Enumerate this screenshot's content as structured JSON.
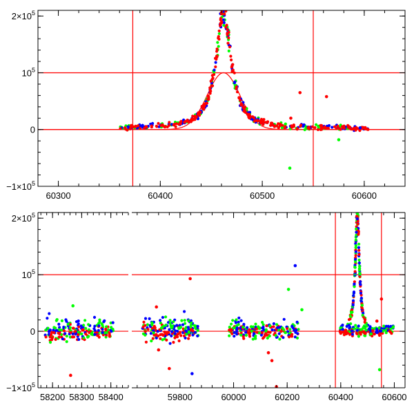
{
  "colors": {
    "red": "#ff0000",
    "green": "#00ff00",
    "blue": "#0000ff",
    "axis": "#000000"
  },
  "chart_data": [
    {
      "type": "scatter",
      "panel": "top",
      "xlim": [
        60280,
        60640
      ],
      "ylim": [
        -100000,
        210000
      ],
      "xticks": [
        60300,
        60400,
        60500,
        60600
      ],
      "x_tick_labels": [
        "60300",
        "60400",
        "60500",
        "60600"
      ],
      "yticks": [
        -100000,
        0,
        100000,
        200000
      ],
      "y_tick_labels": [
        {
          "base": "−1×10",
          "exp": "5"
        },
        {
          "base": "0",
          "exp": ""
        },
        {
          "base": "10",
          "exp": "5"
        },
        {
          "base": "2×10",
          "exp": "5"
        }
      ],
      "reference_lines": {
        "h": [
          0,
          100000
        ],
        "v": [
          60373,
          60550
        ]
      },
      "model_curve": {
        "center": 60462,
        "amplitude": 100000,
        "width": 16,
        "shape": "gaussian"
      },
      "lightcurve": {
        "x_start": 60360,
        "x_end": 60604,
        "peak_x": 60462,
        "peak_amplitude": 205000,
        "half_width": 9
      },
      "series": [
        {
          "color": "green",
          "points": 150
        },
        {
          "color": "blue",
          "points": 150
        },
        {
          "color": "red",
          "points": 260
        }
      ],
      "outliers": [
        {
          "x": 60537,
          "y": 65000,
          "color": "red"
        },
        {
          "x": 60563,
          "y": 58000,
          "color": "red"
        },
        {
          "x": 60527,
          "y": -68000,
          "color": "green"
        },
        {
          "x": 60575,
          "y": -18000,
          "color": "green"
        },
        {
          "x": 60528,
          "y": 20000,
          "color": "red"
        },
        {
          "x": 60596,
          "y": 3000,
          "color": "blue"
        }
      ]
    },
    {
      "type": "scatter",
      "panel": "bottom",
      "ylim": [
        -100000,
        210000
      ],
      "yticks": [
        -100000,
        0,
        100000,
        200000
      ],
      "y_tick_labels": [
        {
          "base": "−1×10",
          "exp": "5"
        },
        {
          "base": "0",
          "exp": ""
        },
        {
          "base": "10",
          "exp": "5"
        },
        {
          "base": "2×10",
          "exp": "5"
        }
      ],
      "segments": [
        {
          "xlim": [
            58150,
            58460
          ],
          "xticks": [
            58200,
            58300,
            58400
          ],
          "x_tick_labels": [
            "58200",
            "58300",
            "58400"
          ]
        },
        {
          "xlim": [
            59620,
            60640
          ],
          "xticks": [
            59800,
            60000,
            60200,
            60400,
            60600
          ],
          "x_tick_labels": [
            "59800",
            "60000",
            "60200",
            "60400",
            "60600"
          ]
        }
      ],
      "reference_lines": {
        "h": [
          0,
          100000
        ],
        "v": [
          60380,
          60552
        ]
      },
      "clusters": [
        {
          "x_range": [
            58175,
            58410
          ],
          "scatter": 12000
        },
        {
          "x_range": [
            59660,
            59870
          ],
          "scatter": 13000
        },
        {
          "x_range": [
            59980,
            60245
          ],
          "scatter": 11000
        },
        {
          "x_range": [
            60395,
            60600
          ],
          "scatter": 6000
        }
      ],
      "lightcurve": {
        "peak_x": 60462,
        "peak_amplitude": 205000,
        "half_width": 9
      },
      "outliers": [
        {
          "x": 58262,
          "y": -78000,
          "color": "red"
        },
        {
          "x": 58270,
          "y": 45000,
          "color": "green"
        },
        {
          "x": 59712,
          "y": 43000,
          "color": "red"
        },
        {
          "x": 59720,
          "y": -33000,
          "color": "red"
        },
        {
          "x": 59760,
          "y": -66000,
          "color": "red"
        },
        {
          "x": 59838,
          "y": 93000,
          "color": "red"
        },
        {
          "x": 59845,
          "y": -75000,
          "color": "blue"
        },
        {
          "x": 60130,
          "y": -38000,
          "color": "red"
        },
        {
          "x": 60143,
          "y": -52000,
          "color": "red"
        },
        {
          "x": 60160,
          "y": -98000,
          "color": "red"
        },
        {
          "x": 60230,
          "y": 116000,
          "color": "blue"
        },
        {
          "x": 60205,
          "y": 74000,
          "color": "green"
        },
        {
          "x": 60255,
          "y": 38000,
          "color": "green"
        },
        {
          "x": 60552,
          "y": 57000,
          "color": "red"
        },
        {
          "x": 60545,
          "y": -68000,
          "color": "green"
        },
        {
          "x": 60535,
          "y": 18000,
          "color": "red"
        }
      ]
    }
  ]
}
